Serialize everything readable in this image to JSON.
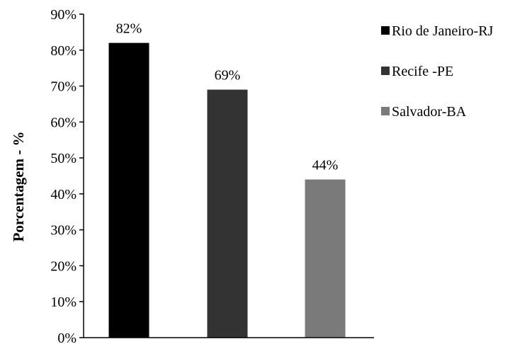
{
  "chart_data": {
    "type": "bar",
    "title": "",
    "xlabel": "",
    "ylabel": "Porcentagem - %",
    "ylim": [
      0,
      90
    ],
    "yticks": [
      "0%",
      "10%",
      "20%",
      "30%",
      "40%",
      "50%",
      "60%",
      "70%",
      "80%",
      "90%"
    ],
    "grid": false,
    "legend_position": "top-right",
    "series": [
      {
        "name": "Rio de Janeiro-RJ",
        "value": 82,
        "label": "82%",
        "color": "#000000"
      },
      {
        "name": "Recife -PE",
        "value": 69,
        "label": "69%",
        "color": "#333333"
      },
      {
        "name": "Salvador-BA",
        "value": 44,
        "label": "44%",
        "color": "#7a7a7a"
      }
    ]
  }
}
